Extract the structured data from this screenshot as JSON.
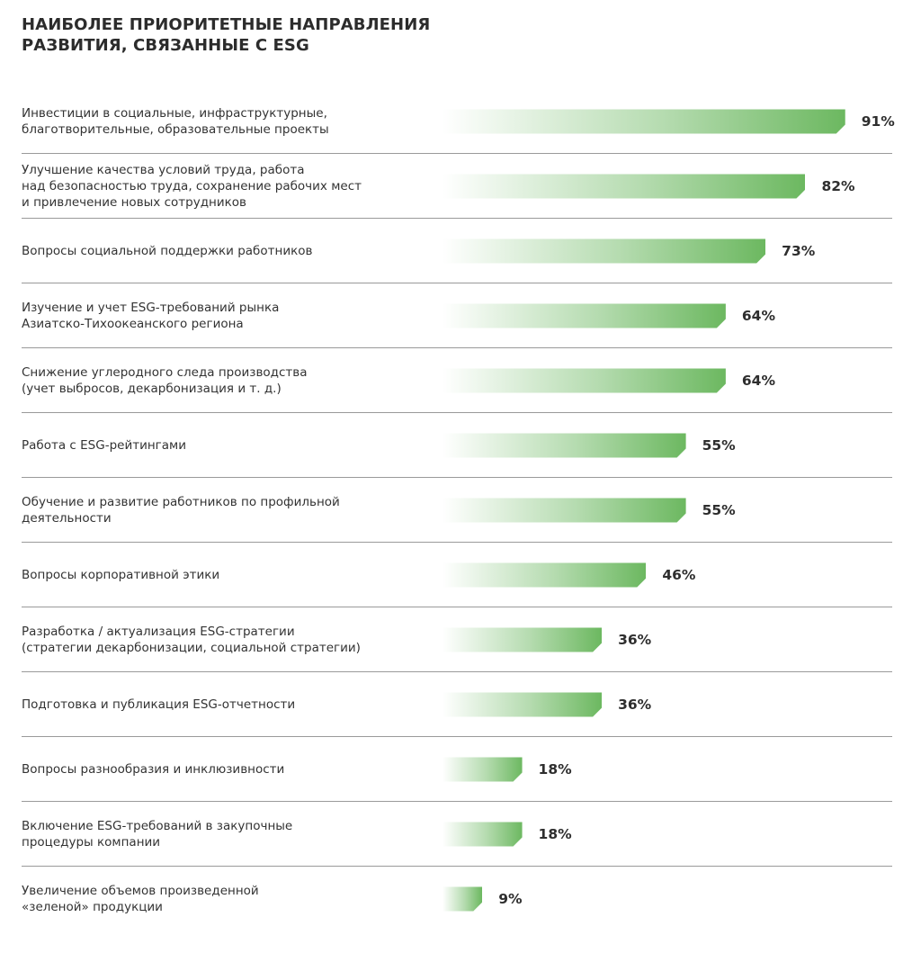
{
  "chart_data": {
    "type": "bar",
    "orientation": "horizontal",
    "title": "НАИБОЛЕЕ ПРИОРИТЕТНЫЕ НАПРАВЛЕНИЯ\nРАЗВИТИЯ, СВЯЗАННЫЕ С ESG",
    "unit": "%",
    "categories": [
      "Инвестиции в социальные, инфраструктурные,\nблаготворительные, образовательные проекты",
      "Улучшение качества условий труда, работа\nнад безопасностью труда, сохранение рабочих мест\nи привлечение новых сотрудников",
      "Вопросы социальной поддержки работников",
      "Изучение и учет ESG-требований рынка\nАзиатско-Тихоокеанского региона",
      "Снижение углеродного следа производства\n(учет выбросов, декарбонизация и т. д.)",
      "Работа с ESG-рейтингами",
      "Обучение и развитие работников по профильной\nдеятельности",
      "Вопросы корпоративной этики",
      "Разработка / актуализация ESG-стратегии\n(стратегии декарбонизации, социальной стратегии)",
      "Подготовка и публикация ESG-отчетности",
      "Вопросы разнообразия и инклюзивности",
      "Включение ESG-требований в закупочные\nпроцедуры компании",
      "Увеличение объемов произведенной\n«зеленой» продукции"
    ],
    "values": [
      91,
      82,
      73,
      64,
      64,
      55,
      55,
      46,
      36,
      36,
      18,
      18,
      9
    ],
    "value_labels": [
      "91%",
      "82%",
      "73%",
      "64%",
      "64%",
      "55%",
      "55%",
      "46%",
      "36%",
      "36%",
      "18%",
      "18%",
      "9%"
    ],
    "bar_color": "#6cb860",
    "grid": false,
    "legend": "none"
  }
}
